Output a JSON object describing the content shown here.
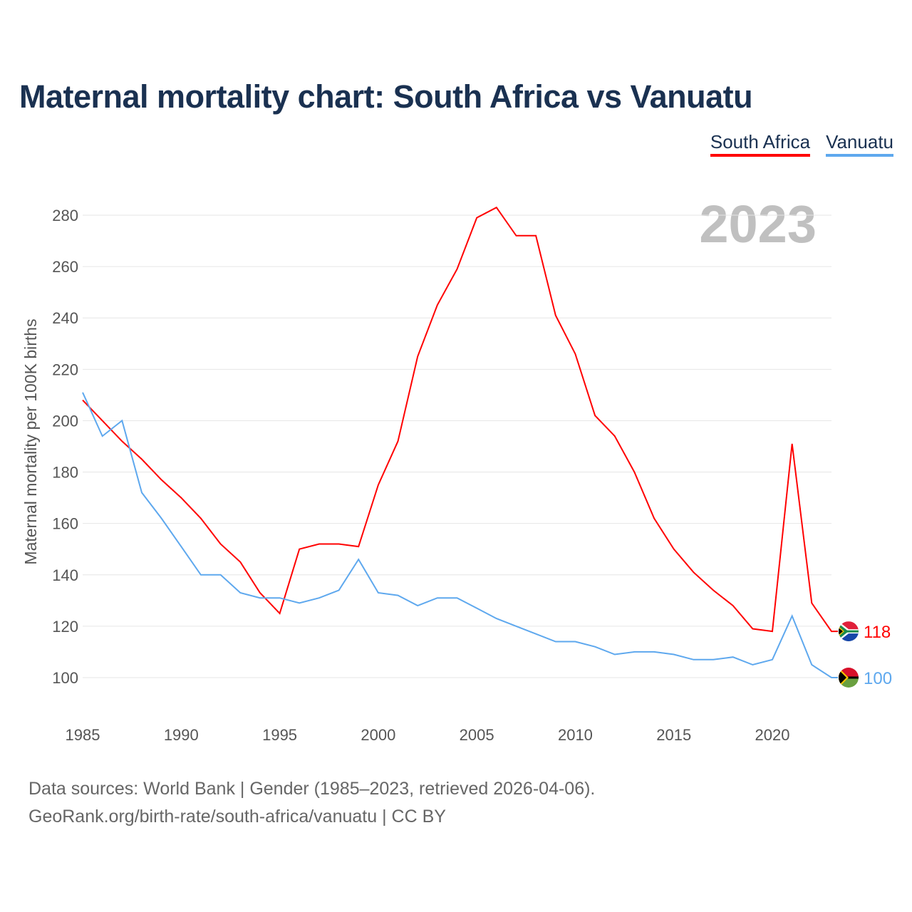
{
  "title": "Maternal mortality chart: South Africa vs Vanuatu",
  "source_line1": "Data sources: World Bank | Gender (1985–2023, retrieved 2026-04-06).",
  "source_line2": "GeoRank.org/birth-rate/south-africa/vanuatu | CC BY",
  "chart_data": {
    "type": "line",
    "title": "Maternal mortality chart: South Africa vs Vanuatu",
    "ylabel": "Maternal mortality per 100K births",
    "xlabel": "",
    "year_label": "2023",
    "xlim": [
      1985,
      2023
    ],
    "ylim": [
      100,
      280
    ],
    "xticks": [
      1985,
      1990,
      1995,
      2000,
      2005,
      2010,
      2015,
      2020
    ],
    "yticks": [
      100,
      120,
      140,
      160,
      180,
      200,
      220,
      240,
      260,
      280
    ],
    "grid": true,
    "legend_position": "top-right",
    "x": [
      1985,
      1986,
      1987,
      1988,
      1989,
      1990,
      1991,
      1992,
      1993,
      1994,
      1995,
      1996,
      1997,
      1998,
      1999,
      2000,
      2001,
      2002,
      2003,
      2004,
      2005,
      2006,
      2007,
      2008,
      2009,
      2010,
      2011,
      2012,
      2013,
      2014,
      2015,
      2016,
      2017,
      2018,
      2019,
      2020,
      2021,
      2022,
      2023
    ],
    "series": [
      {
        "name": "South Africa",
        "color": "#ff0000",
        "end_label": "118",
        "flag": "south-africa-flag",
        "values": [
          208,
          200,
          192,
          185,
          177,
          170,
          162,
          152,
          145,
          133,
          125,
          150,
          152,
          152,
          151,
          175,
          192,
          225,
          245,
          259,
          279,
          283,
          272,
          272,
          241,
          226,
          202,
          194,
          180,
          162,
          150,
          141,
          134,
          128,
          119,
          118,
          191,
          129,
          118
        ]
      },
      {
        "name": "Vanuatu",
        "color": "#5ea8ee",
        "end_label": "100",
        "flag": "vanuatu-flag",
        "values": [
          211,
          194,
          200,
          172,
          162,
          151,
          140,
          140,
          133,
          131,
          131,
          129,
          131,
          134,
          146,
          133,
          132,
          128,
          131,
          131,
          127,
          123,
          120,
          117,
          114,
          114,
          112,
          109,
          110,
          110,
          109,
          107,
          107,
          108,
          105,
          107,
          124,
          105,
          100
        ]
      }
    ]
  }
}
